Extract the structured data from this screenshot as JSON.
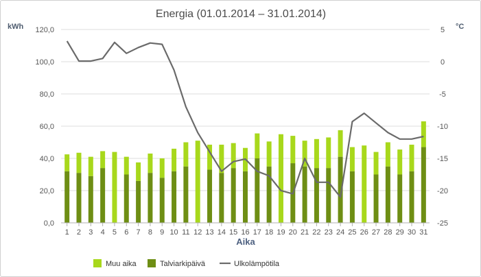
{
  "chart_data": {
    "type": "bar",
    "title": "Energia (01.01.2014 – 31.01.2014)",
    "xlabel": "Aika",
    "ylabel_left": "kWh",
    "ylabel_right": "°C",
    "categories": [
      "1",
      "2",
      "3",
      "4",
      "5",
      "6",
      "7",
      "8",
      "9",
      "10",
      "11",
      "12",
      "13",
      "14",
      "15",
      "16",
      "17",
      "18",
      "19",
      "20",
      "21",
      "22",
      "23",
      "24",
      "25",
      "26",
      "27",
      "28",
      "29",
      "30",
      "31"
    ],
    "ylim_left": [
      0,
      120
    ],
    "yticks_left": [
      "0,0",
      "20,0",
      "40,0",
      "60,0",
      "80,0",
      "100,0",
      "120,0"
    ],
    "ylim_right": [
      -25,
      5
    ],
    "yticks_right": [
      "-25",
      "-20",
      "-15",
      "-10",
      "-5",
      "0",
      "5"
    ],
    "stacked": true,
    "series": [
      {
        "name": "Talviarkipäivä",
        "type": "bar",
        "color": "#6e8e14",
        "values": [
          32,
          31,
          29,
          34,
          0,
          30,
          26,
          31,
          28,
          32,
          35,
          0,
          33,
          31,
          34,
          32,
          40,
          35,
          0,
          37,
          35,
          34,
          34,
          41,
          32,
          0,
          30,
          35,
          30,
          32,
          47
        ]
      },
      {
        "name": "Muu aika",
        "type": "bar",
        "color": "#a8d81c",
        "values": [
          10.5,
          12.5,
          12,
          10.5,
          44,
          11,
          11.5,
          12,
          12,
          14,
          15,
          51,
          15.5,
          17.5,
          15.5,
          14.5,
          15.5,
          15.5,
          55,
          17,
          16,
          18,
          19,
          16.5,
          15,
          48,
          14,
          15,
          15.5,
          16.5,
          16
        ]
      },
      {
        "name": "Ulkolämpötila",
        "type": "line",
        "color": "#6a6a6a",
        "values": [
          3.2,
          0.1,
          0.1,
          0.5,
          3,
          1.3,
          2.2,
          2.9,
          2.7,
          -1.3,
          -7,
          -11,
          -14,
          -17,
          -15.5,
          -15.1,
          -17,
          -17.7,
          -20,
          -20.5,
          -15,
          -18.7,
          -18.7,
          -21,
          -9.3,
          -8,
          -9.5,
          -11,
          -12,
          -12,
          -11.6
        ]
      }
    ],
    "grid": true,
    "legend_position": "bottom-left"
  }
}
